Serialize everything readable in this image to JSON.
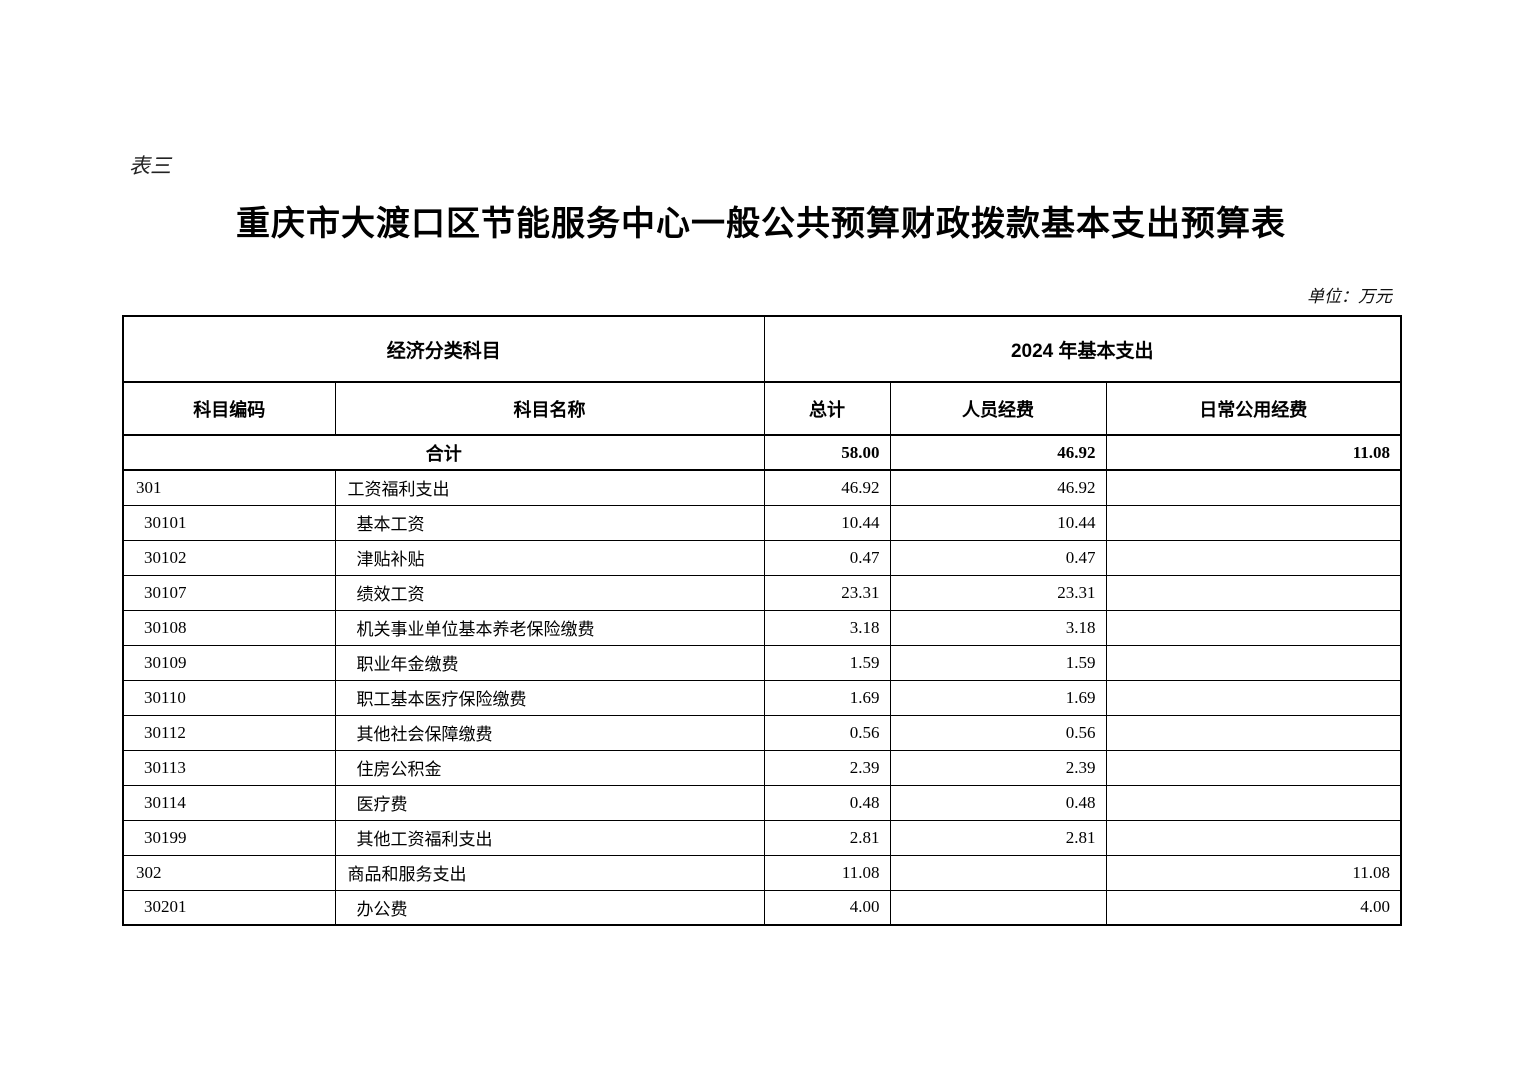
{
  "page": {
    "form_label": "表三",
    "title": "重庆市大渡口区节能服务中心一般公共预算财政拨款基本支出预算表",
    "unit_note": "单位：万元"
  },
  "colors": {
    "text": "#000000",
    "border": "#000000",
    "background": "#ffffff"
  },
  "table": {
    "header_group": {
      "left": "经济分类科目",
      "right": "2024 年基本支出"
    },
    "columns": [
      "科目编码",
      "科目名称",
      "总计",
      "人员经费",
      "日常公用经费"
    ],
    "total_row": {
      "label": "合计",
      "total": "58.00",
      "personnel": "46.92",
      "daily": "11.08"
    },
    "rows": [
      {
        "code": "301",
        "name": "工资福利支出",
        "total": "46.92",
        "personnel": "46.92",
        "daily": "",
        "level": 1
      },
      {
        "code": "30101",
        "name": "基本工资",
        "total": "10.44",
        "personnel": "10.44",
        "daily": "",
        "level": 2
      },
      {
        "code": "30102",
        "name": "津贴补贴",
        "total": "0.47",
        "personnel": "0.47",
        "daily": "",
        "level": 2
      },
      {
        "code": "30107",
        "name": "绩效工资",
        "total": "23.31",
        "personnel": "23.31",
        "daily": "",
        "level": 2
      },
      {
        "code": "30108",
        "name": "机关事业单位基本养老保险缴费",
        "total": "3.18",
        "personnel": "3.18",
        "daily": "",
        "level": 2
      },
      {
        "code": "30109",
        "name": "职业年金缴费",
        "total": "1.59",
        "personnel": "1.59",
        "daily": "",
        "level": 2
      },
      {
        "code": "30110",
        "name": "职工基本医疗保险缴费",
        "total": "1.69",
        "personnel": "1.69",
        "daily": "",
        "level": 2
      },
      {
        "code": "30112",
        "name": "其他社会保障缴费",
        "total": "0.56",
        "personnel": "0.56",
        "daily": "",
        "level": 2
      },
      {
        "code": "30113",
        "name": "住房公积金",
        "total": "2.39",
        "personnel": "2.39",
        "daily": "",
        "level": 2
      },
      {
        "code": "30114",
        "name": "医疗费",
        "total": "0.48",
        "personnel": "0.48",
        "daily": "",
        "level": 2
      },
      {
        "code": "30199",
        "name": "其他工资福利支出",
        "total": "2.81",
        "personnel": "2.81",
        "daily": "",
        "level": 2
      },
      {
        "code": "302",
        "name": "商品和服务支出",
        "total": "11.08",
        "personnel": "",
        "daily": "11.08",
        "level": 1
      },
      {
        "code": "30201",
        "name": "办公费",
        "total": "4.00",
        "personnel": "",
        "daily": "4.00",
        "level": 2
      }
    ]
  }
}
